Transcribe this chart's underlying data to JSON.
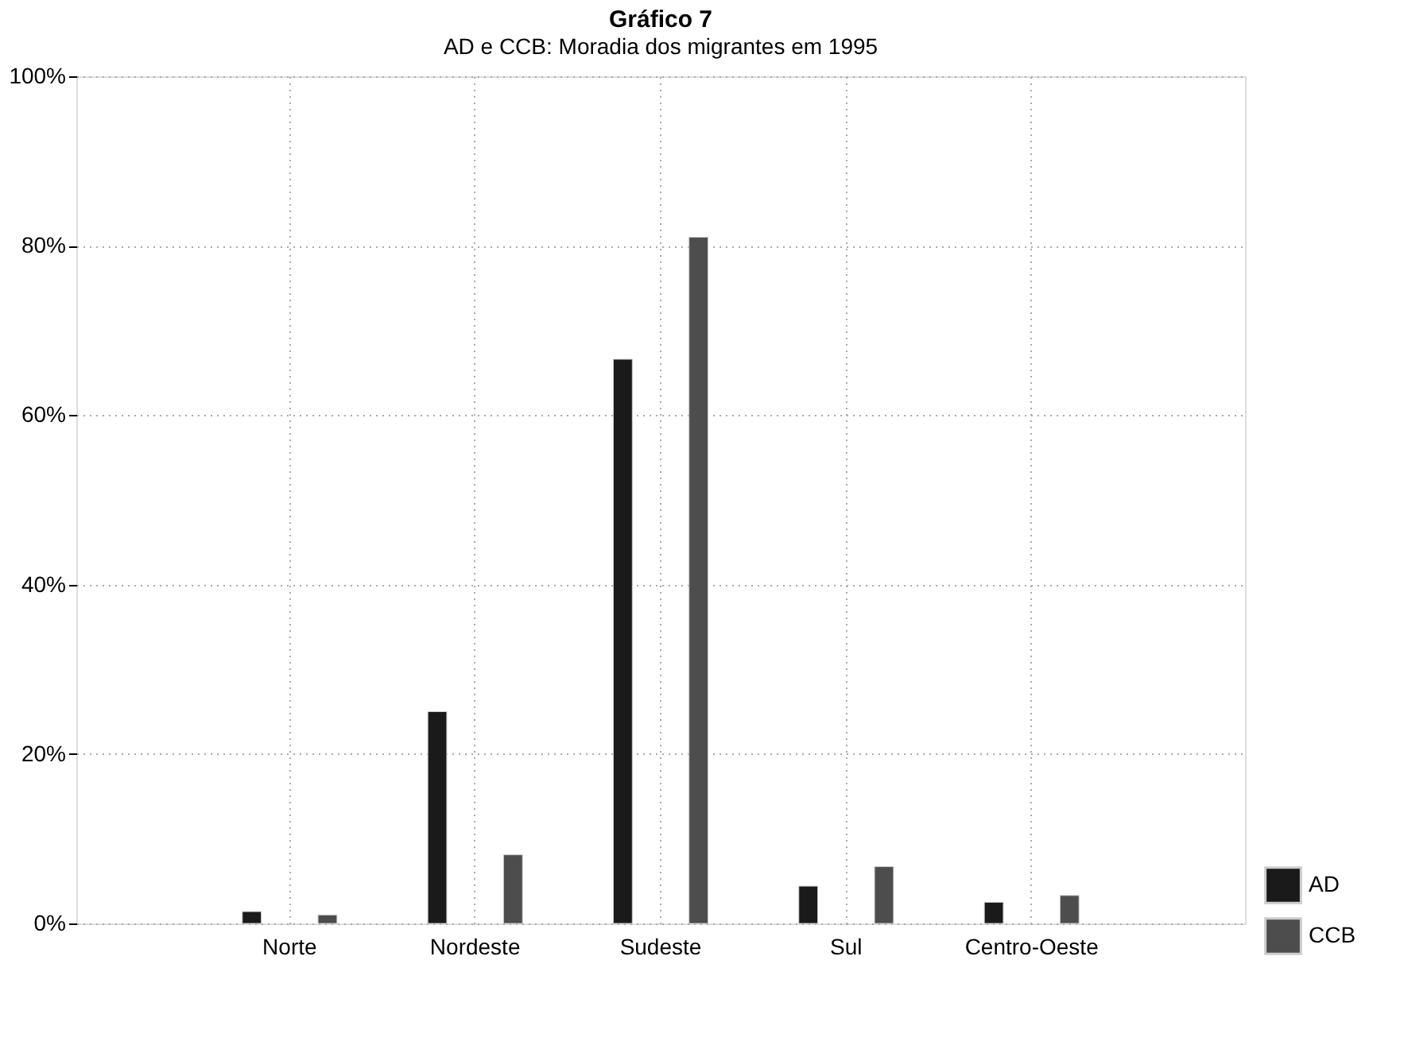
{
  "chart_data": {
    "type": "bar",
    "title": "Gráfico 7",
    "subtitle": "AD e CCB: Moradia dos migrantes em 1995",
    "categories": [
      "Norte",
      "Nordeste",
      "Sudeste",
      "Sul",
      "Centro-Oeste"
    ],
    "series": [
      {
        "name": "AD",
        "color": "#1a1a1a",
        "values": [
          1.4,
          25,
          66.6,
          4.4,
          2.5
        ]
      },
      {
        "name": "CCB",
        "color": "#4d4d4d",
        "values": [
          1.0,
          8.1,
          81.0,
          6.7,
          3.3
        ]
      }
    ],
    "ylim": [
      0,
      100
    ],
    "yticks": [
      {
        "value": 0,
        "label": "0%"
      },
      {
        "value": 20,
        "label": "20%"
      },
      {
        "value": 40,
        "label": "40%"
      },
      {
        "value": 60,
        "label": "60%"
      },
      {
        "value": 80,
        "label": "80%"
      },
      {
        "value": 100,
        "label": "100%"
      }
    ],
    "grid": true,
    "legend": "bottom right"
  }
}
